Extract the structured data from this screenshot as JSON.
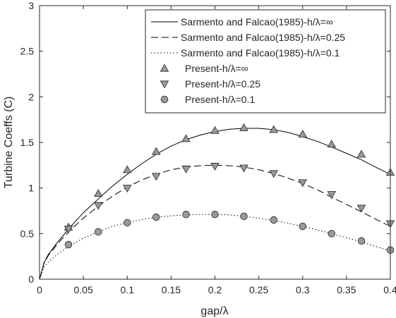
{
  "chart_data": {
    "type": "line",
    "title": "",
    "xlabel": "gap/λ",
    "ylabel": "Turbine Coeffs (C)",
    "xlim": [
      0,
      0.4
    ],
    "ylim": [
      0,
      3
    ],
    "xticks": [
      0,
      0.05,
      0.1,
      0.15,
      0.2,
      0.25,
      0.3,
      0.35,
      0.4
    ],
    "xtick_labels": [
      "0",
      "0.05",
      "0.1",
      "0.15",
      "0.2",
      "0.25",
      "0.3",
      "0.35",
      "0.4"
    ],
    "yticks": [
      0,
      0.5,
      1,
      1.5,
      2,
      2.5,
      3
    ],
    "ytick_labels": [
      "0",
      "0.5",
      "1",
      "1.5",
      "2",
      "2.5",
      "3"
    ],
    "grid": false,
    "legend_position": "top-right",
    "series": [
      {
        "name": "Sarmento and Falcao(1985)-h/λ=∞",
        "style": "solid",
        "color": "#000000",
        "x": [
          0,
          0.005,
          0.01,
          0.02,
          0.033,
          0.05,
          0.067,
          0.083,
          0.1,
          0.117,
          0.133,
          0.15,
          0.167,
          0.183,
          0.2,
          0.217,
          0.233,
          0.25,
          0.267,
          0.283,
          0.3,
          0.317,
          0.333,
          0.35,
          0.367,
          0.383,
          0.4
        ],
        "y": [
          0,
          0.18,
          0.27,
          0.4,
          0.55,
          0.73,
          0.88,
          1.02,
          1.15,
          1.27,
          1.37,
          1.46,
          1.53,
          1.58,
          1.62,
          1.645,
          1.655,
          1.655,
          1.64,
          1.61,
          1.565,
          1.51,
          1.45,
          1.38,
          1.31,
          1.23,
          1.15
        ]
      },
      {
        "name": "Sarmento and Falcao(1985)-h/λ=0.25",
        "style": "dashed",
        "color": "#000000",
        "x": [
          0,
          0.005,
          0.01,
          0.02,
          0.033,
          0.05,
          0.067,
          0.083,
          0.1,
          0.117,
          0.133,
          0.15,
          0.167,
          0.183,
          0.2,
          0.217,
          0.233,
          0.25,
          0.267,
          0.283,
          0.3,
          0.317,
          0.333,
          0.35,
          0.367,
          0.383,
          0.4
        ],
        "y": [
          0,
          0.17,
          0.26,
          0.38,
          0.52,
          0.67,
          0.8,
          0.91,
          1.01,
          1.09,
          1.15,
          1.2,
          1.23,
          1.245,
          1.25,
          1.245,
          1.23,
          1.2,
          1.16,
          1.11,
          1.05,
          0.98,
          0.9,
          0.82,
          0.74,
          0.66,
          0.58
        ]
      },
      {
        "name": "Sarmento and Falcao(1985)-h/λ=0.1",
        "style": "dotted",
        "color": "#000000",
        "x": [
          0,
          0.005,
          0.01,
          0.02,
          0.033,
          0.05,
          0.067,
          0.083,
          0.1,
          0.117,
          0.133,
          0.15,
          0.167,
          0.183,
          0.2,
          0.217,
          0.233,
          0.25,
          0.267,
          0.283,
          0.3,
          0.317,
          0.333,
          0.35,
          0.367,
          0.383,
          0.4
        ],
        "y": [
          0,
          0.13,
          0.19,
          0.27,
          0.36,
          0.45,
          0.52,
          0.58,
          0.62,
          0.655,
          0.68,
          0.695,
          0.705,
          0.71,
          0.71,
          0.705,
          0.69,
          0.67,
          0.645,
          0.615,
          0.58,
          0.54,
          0.5,
          0.455,
          0.41,
          0.36,
          0.31
        ]
      },
      {
        "name": "Present-h/λ=∞",
        "marker": "triangle-up",
        "color": "#9a9a9a",
        "x": [
          0.033,
          0.067,
          0.1,
          0.133,
          0.167,
          0.2,
          0.233,
          0.267,
          0.3,
          0.333,
          0.367,
          0.4
        ],
        "y": [
          0.57,
          0.94,
          1.2,
          1.4,
          1.54,
          1.63,
          1.66,
          1.64,
          1.59,
          1.48,
          1.37,
          1.17
        ]
      },
      {
        "name": "Present-h/λ=0.25",
        "marker": "triangle-down",
        "color": "#9a9a9a",
        "x": [
          0.033,
          0.067,
          0.1,
          0.133,
          0.167,
          0.2,
          0.233,
          0.267,
          0.3,
          0.333,
          0.367,
          0.4
        ],
        "y": [
          0.55,
          0.81,
          1.0,
          1.13,
          1.21,
          1.24,
          1.22,
          1.16,
          1.06,
          0.93,
          0.78,
          0.61
        ]
      },
      {
        "name": "Present-h/λ=0.1",
        "marker": "circle",
        "color": "#9a9a9a",
        "x": [
          0.033,
          0.067,
          0.1,
          0.133,
          0.167,
          0.2,
          0.233,
          0.267,
          0.3,
          0.333,
          0.367,
          0.4
        ],
        "y": [
          0.38,
          0.52,
          0.62,
          0.68,
          0.71,
          0.71,
          0.69,
          0.65,
          0.58,
          0.5,
          0.42,
          0.32
        ]
      }
    ]
  }
}
